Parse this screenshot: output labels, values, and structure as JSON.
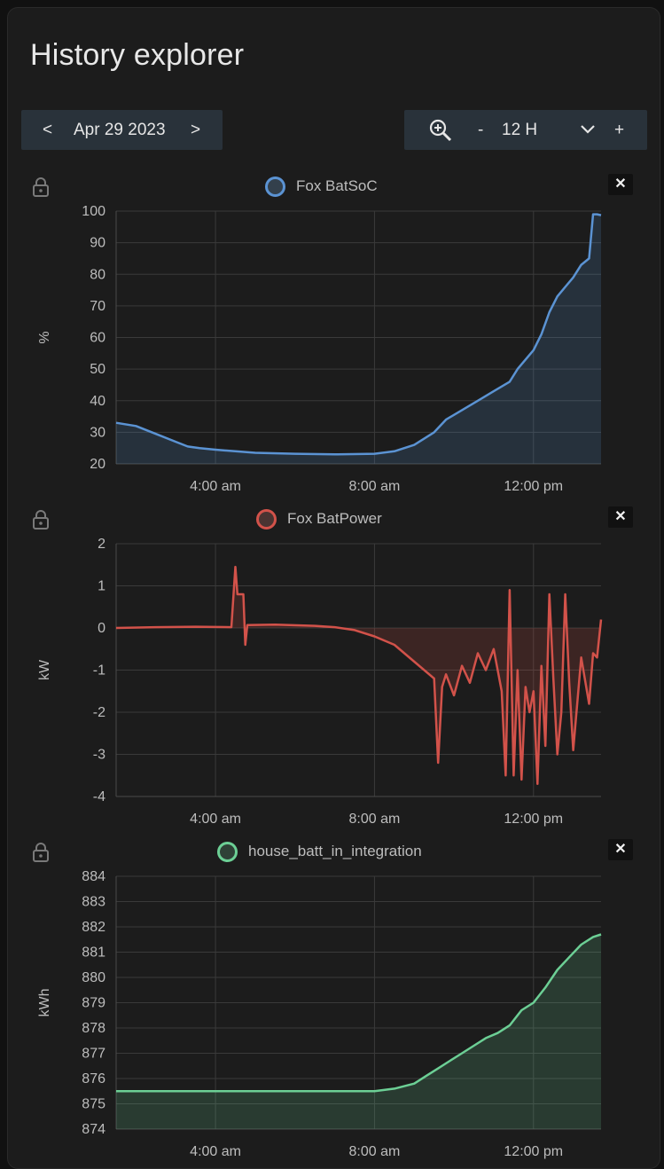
{
  "header": {
    "title": "History explorer"
  },
  "date_nav": {
    "prev": "<",
    "date": "Apr 29 2023",
    "next": ">"
  },
  "zoom_nav": {
    "zoom_icon": "zoom-in-icon",
    "minus": "-",
    "range": "12 H",
    "dropdown_icon": "chevron-down-icon",
    "plus": "+"
  },
  "colors": {
    "bg": "#1c1c1c",
    "grid": "#3a3a3a",
    "control_bg": "#29323a"
  },
  "chart_data": [
    {
      "type": "line",
      "legend": "Fox BatSoC",
      "color": "#5b93d3",
      "ylabel": "%",
      "ylim": [
        20,
        100
      ],
      "yticks": [
        "100",
        "90",
        "80",
        "70",
        "60",
        "50",
        "40",
        "30",
        "20"
      ],
      "xticks": [
        "4:00 am",
        "8:00 am",
        "12:00 pm"
      ],
      "x_hours": [
        1.5,
        2.0,
        2.5,
        3.0,
        3.3,
        3.6,
        4.0,
        4.5,
        5.0,
        6.0,
        7.0,
        8.0,
        8.5,
        9.0,
        9.5,
        9.8,
        10.2,
        10.6,
        11.0,
        11.4,
        11.6,
        11.8,
        12.0,
        12.2,
        12.4,
        12.6,
        12.8,
        13.0,
        13.2,
        13.4,
        13.5,
        13.6,
        13.7
      ],
      "values": [
        33,
        32,
        29.5,
        27,
        25.5,
        25,
        24.5,
        24,
        23.5,
        23.2,
        23,
        23.2,
        24,
        26,
        30,
        34,
        37,
        40,
        43,
        46,
        50,
        53,
        56,
        61,
        68,
        73,
        76,
        79,
        83,
        85,
        99,
        99,
        98.7
      ]
    },
    {
      "type": "line",
      "legend": "Fox BatPower",
      "color": "#d2524a",
      "ylabel": "kW",
      "ylim": [
        -4,
        2
      ],
      "yticks": [
        "2",
        "1",
        "0",
        "-1",
        "-2",
        "-3",
        "-4"
      ],
      "xticks": [
        "4:00 am",
        "8:00 am",
        "12:00 pm"
      ],
      "x_hours": [
        1.5,
        2.5,
        3.5,
        4.4,
        4.5,
        4.55,
        4.7,
        4.75,
        4.8,
        5.5,
        6.5,
        7.0,
        7.5,
        8.0,
        8.5,
        9.0,
        9.5,
        9.6,
        9.7,
        9.8,
        10.0,
        10.2,
        10.4,
        10.6,
        10.8,
        11.0,
        11.2,
        11.3,
        11.4,
        11.5,
        11.6,
        11.7,
        11.8,
        11.9,
        12.0,
        12.1,
        12.2,
        12.3,
        12.4,
        12.5,
        12.6,
        12.7,
        12.8,
        12.9,
        13.0,
        13.2,
        13.4,
        13.5,
        13.6,
        13.7
      ],
      "values": [
        0.0,
        0.02,
        0.03,
        0.02,
        1.45,
        0.8,
        0.8,
        -0.4,
        0.07,
        0.08,
        0.05,
        0.02,
        -0.05,
        -0.2,
        -0.4,
        -0.8,
        -1.2,
        -3.2,
        -1.4,
        -1.1,
        -1.6,
        -0.9,
        -1.3,
        -0.6,
        -1.0,
        -0.5,
        -1.5,
        -3.5,
        0.9,
        -3.5,
        -1.0,
        -3.6,
        -1.4,
        -2.0,
        -1.5,
        -3.7,
        -0.9,
        -2.8,
        0.8,
        -1.2,
        -3.0,
        -2.0,
        0.8,
        -1.3,
        -2.9,
        -0.7,
        -1.8,
        -0.6,
        -0.7,
        0.2
      ]
    },
    {
      "type": "line",
      "legend": "house_batt_in_integration",
      "color": "#6ccf95",
      "ylabel": "kWh",
      "ylim": [
        874,
        884
      ],
      "yticks": [
        "884",
        "883",
        "882",
        "881",
        "880",
        "879",
        "878",
        "877",
        "876",
        "875",
        "874"
      ],
      "xticks": [
        "4:00 am",
        "8:00 am",
        "12:00 pm"
      ],
      "x_hours": [
        1.5,
        3.0,
        5.0,
        7.0,
        8.0,
        8.5,
        9.0,
        9.3,
        9.6,
        9.9,
        10.2,
        10.5,
        10.8,
        11.1,
        11.4,
        11.7,
        12.0,
        12.3,
        12.6,
        12.9,
        13.2,
        13.5,
        13.7
      ],
      "values": [
        875.5,
        875.5,
        875.5,
        875.5,
        875.5,
        875.6,
        875.8,
        876.1,
        876.4,
        876.7,
        877.0,
        877.3,
        877.6,
        877.8,
        878.1,
        878.7,
        879.0,
        879.6,
        880.3,
        880.8,
        881.3,
        881.6,
        881.7
      ]
    }
  ]
}
